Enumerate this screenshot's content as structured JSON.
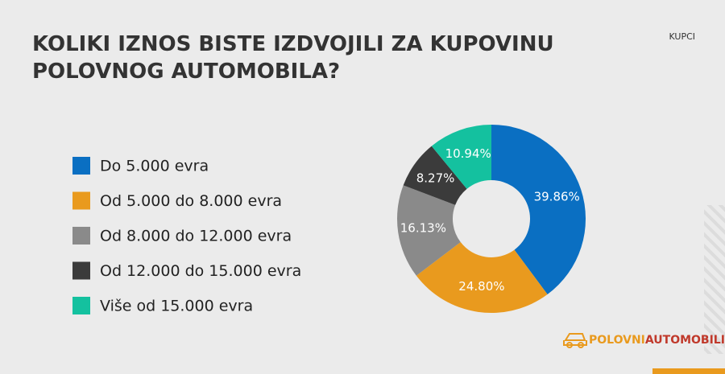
{
  "chart_data": {
    "type": "pie",
    "title": "KOLIKI IZNOS BISTE IZDVOJILI ZA KUPOVINU POLOVNOG AUTOMOBILA?",
    "tag": "KUPCI",
    "categories": [
      "Do 5.000 evra",
      "Od 5.000 do 8.000 evra",
      "Od 8.000 do 12.000 evra",
      "Od 12.000 do 15.000 evra",
      "Više od 15.000 evra"
    ],
    "values": [
      39.86,
      24.8,
      16.13,
      8.27,
      10.94
    ],
    "value_labels": [
      "39.86%",
      "24.80%",
      "16.13%",
      "8.27%",
      "10.94%"
    ],
    "colors": [
      "#0a6fc2",
      "#e99a1e",
      "#8a8a8a",
      "#3b3b3b",
      "#14c19f"
    ],
    "legend": "left"
  },
  "logo": {
    "part1": "POLOVNI",
    "part2": "AUTOMOBILI"
  }
}
